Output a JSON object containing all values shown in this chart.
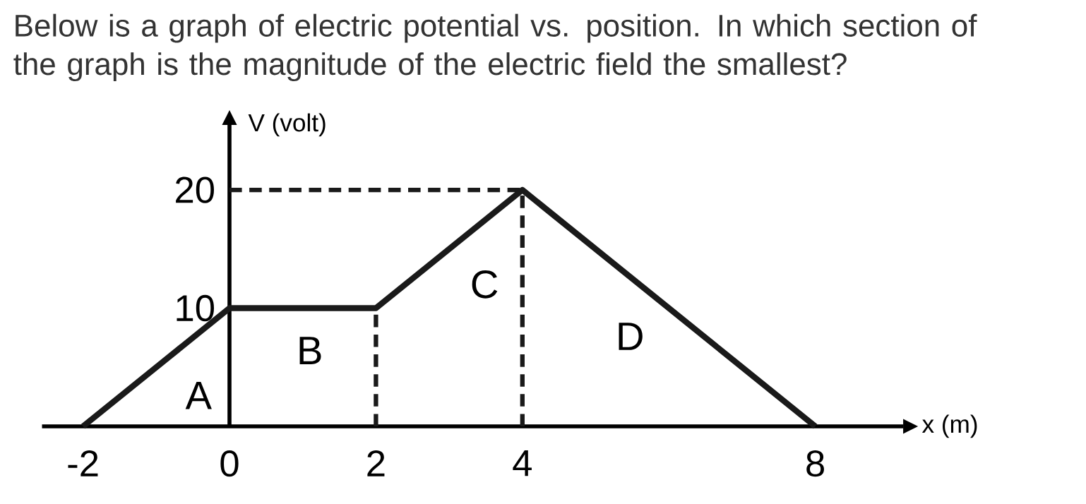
{
  "chart_data": {
    "type": "line",
    "title": "Below is a graph of electric potential vs. position. In which section of the graph is the magnitude of the electric field the smallest?",
    "xlabel": "x (m)",
    "ylabel": "V (volt)",
    "xlim": [
      -2.56,
      9.2
    ],
    "ylim": [
      0,
      25.5
    ],
    "xticks": [
      -2,
      0,
      2,
      4,
      8
    ],
    "yticks": [
      10,
      20
    ],
    "marker": "none",
    "series": [
      {
        "line_style": "dashed",
        "color": "#1a1a1a",
        "x": [
          0,
          4
        ],
        "values": [
          20,
          20
        ]
      },
      {
        "line_style": "dashed",
        "color": "#1a1a1a",
        "x": [
          2,
          2
        ],
        "values": [
          0,
          10
        ]
      },
      {
        "line_style": "dashed",
        "color": "#1a1a1a",
        "x": [
          4,
          4
        ],
        "values": [
          0,
          20
        ]
      },
      {
        "line_style": "solid",
        "color": "#1a1a1a",
        "x": [
          -2,
          0,
          2,
          4,
          8
        ],
        "values": [
          0,
          10,
          10,
          20,
          0
        ]
      }
    ],
    "annotations": [
      "A",
      "B",
      "C",
      "D"
    ]
  }
}
